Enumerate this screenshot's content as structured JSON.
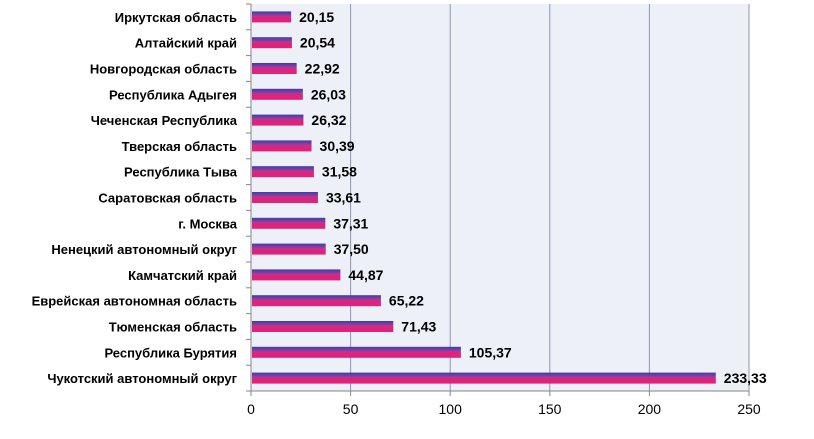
{
  "chart_data": {
    "type": "bar",
    "orientation": "horizontal",
    "categories": [
      "Иркутская область",
      "Алтайский край",
      "Новгородская область",
      "Республика Адыгея",
      "Чеченская Республика",
      "Тверская область",
      "Республика Тыва",
      "Саратовская область",
      "г. Москва",
      "Ненецкий автономный округ",
      "Камчатский край",
      "Еврейская автономная область",
      "Тюменская область",
      "Республика Бурятия",
      "Чукотский автономный округ"
    ],
    "values": [
      20.15,
      20.54,
      22.92,
      26.03,
      26.32,
      30.39,
      31.58,
      33.61,
      37.31,
      37.5,
      44.87,
      65.22,
      71.43,
      105.37,
      233.33
    ],
    "value_labels": [
      "20,15",
      "20,54",
      "22,92",
      "26,03",
      "26,32",
      "30,39",
      "31,58",
      "33,61",
      "37,31",
      "37,50",
      "44,87",
      "65,22",
      "71,43",
      "105,37",
      "233,33"
    ],
    "x_ticks": [
      "0",
      "50",
      "100",
      "150",
      "200",
      "250"
    ],
    "xlim": [
      0,
      250
    ],
    "title": "",
    "xlabel": "",
    "ylabel": "",
    "grid": "vertical",
    "legend": "none",
    "colors": {
      "bar_top": "#3a3fa8",
      "bar_bottom": "#e0227a",
      "bar_mid": "#b03a9a",
      "plot_bg": "#eef0f8",
      "grid": "#8c94b4",
      "axis": "#868686"
    }
  }
}
